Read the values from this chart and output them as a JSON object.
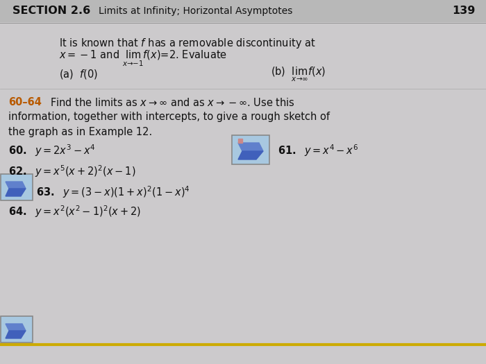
{
  "bg_color": "#cccacc",
  "header_section": "SECTION 2.6",
  "header_title": "Limits at Infinity; Horizontal Asymptotes",
  "page_number": "139",
  "orange_color": "#b85a00",
  "black_color": "#111111",
  "header_bg": "#b8b8b8",
  "pencil_bg": "#a8c8e0",
  "pencil_border": "#888888"
}
